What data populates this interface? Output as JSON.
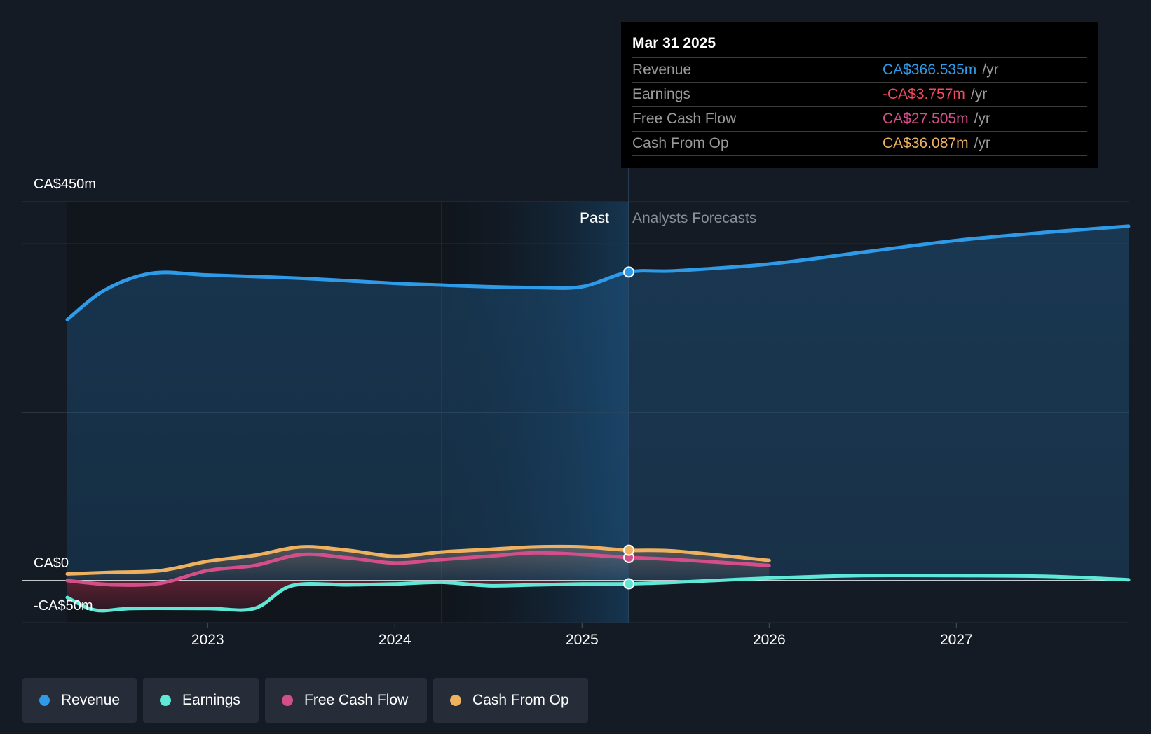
{
  "tooltip": {
    "date": "Mar 31 2025",
    "rows": [
      {
        "label": "Revenue",
        "value": "CA$366.535m",
        "unit": "/yr",
        "color": "#2f9ae8"
      },
      {
        "label": "Earnings",
        "value": "-CA$3.757m",
        "unit": "/yr",
        "color": "#f04a5b"
      },
      {
        "label": "Free Cash Flow",
        "value": "CA$27.505m",
        "unit": "/yr",
        "color": "#d44f8a"
      },
      {
        "label": "Cash From Op",
        "value": "CA$36.087m",
        "unit": "/yr",
        "color": "#eeb15f"
      }
    ]
  },
  "regions": {
    "past": "Past",
    "forecast": "Analysts Forecasts"
  },
  "legend": [
    {
      "label": "Revenue",
      "color": "#2f9ae8"
    },
    {
      "label": "Earnings",
      "color": "#5ee8d5"
    },
    {
      "label": "Free Cash Flow",
      "color": "#d44f8a"
    },
    {
      "label": "Cash From Op",
      "color": "#eeb15f"
    }
  ],
  "chart_data": {
    "type": "line",
    "ylim": [
      -50,
      450
    ],
    "y_tick_labels": [
      "CA$450m",
      "CA$0",
      "-CA$50m"
    ],
    "x_ticks": [
      "2023",
      "2024",
      "2025",
      "2026",
      "2027"
    ],
    "xlim": [
      2022.25,
      2027.92
    ],
    "highlight_x": 2025.25,
    "series": [
      {
        "name": "Revenue",
        "color": "#2f9ae8",
        "points": [
          [
            2022.25,
            310
          ],
          [
            2022.45,
            345
          ],
          [
            2022.7,
            365
          ],
          [
            2023.0,
            363
          ],
          [
            2023.5,
            359
          ],
          [
            2024.0,
            353
          ],
          [
            2024.25,
            351
          ],
          [
            2024.5,
            349
          ],
          [
            2024.75,
            348
          ],
          [
            2025.0,
            349
          ],
          [
            2025.25,
            366.5
          ],
          [
            2025.5,
            368
          ],
          [
            2026.0,
            376
          ],
          [
            2026.5,
            390
          ],
          [
            2027.0,
            404
          ],
          [
            2027.5,
            414
          ],
          [
            2027.92,
            421
          ]
        ]
      },
      {
        "name": "Earnings",
        "color": "#5ee8d5",
        "points": [
          [
            2022.25,
            -20
          ],
          [
            2022.4,
            -35
          ],
          [
            2022.6,
            -33
          ],
          [
            2023.0,
            -33
          ],
          [
            2023.25,
            -33
          ],
          [
            2023.45,
            -6
          ],
          [
            2023.75,
            -5
          ],
          [
            2024.0,
            -4
          ],
          [
            2024.25,
            -2
          ],
          [
            2024.5,
            -6
          ],
          [
            2024.75,
            -5
          ],
          [
            2025.0,
            -4
          ],
          [
            2025.25,
            -3.757
          ],
          [
            2025.5,
            -2
          ],
          [
            2026.0,
            3
          ],
          [
            2026.5,
            6
          ],
          [
            2027.0,
            6
          ],
          [
            2027.5,
            5
          ],
          [
            2027.92,
            1
          ]
        ]
      },
      {
        "name": "Free Cash Flow",
        "color": "#d44f8a",
        "points": [
          [
            2022.25,
            0
          ],
          [
            2022.5,
            -5
          ],
          [
            2022.75,
            -3
          ],
          [
            2023.0,
            12
          ],
          [
            2023.25,
            18
          ],
          [
            2023.5,
            31
          ],
          [
            2023.75,
            27
          ],
          [
            2024.0,
            21
          ],
          [
            2024.25,
            25
          ],
          [
            2024.5,
            29
          ],
          [
            2024.75,
            33
          ],
          [
            2025.0,
            31
          ],
          [
            2025.25,
            27.505
          ],
          [
            2025.5,
            25
          ],
          [
            2026.0,
            18
          ]
        ]
      },
      {
        "name": "Cash From Op",
        "color": "#eeb15f",
        "points": [
          [
            2022.25,
            8
          ],
          [
            2022.5,
            10
          ],
          [
            2022.75,
            12
          ],
          [
            2023.0,
            23
          ],
          [
            2023.25,
            30
          ],
          [
            2023.5,
            40
          ],
          [
            2023.75,
            36
          ],
          [
            2024.0,
            29
          ],
          [
            2024.25,
            34
          ],
          [
            2024.5,
            37
          ],
          [
            2024.75,
            40
          ],
          [
            2025.0,
            40
          ],
          [
            2025.25,
            36.087
          ],
          [
            2025.5,
            35
          ],
          [
            2026.0,
            24
          ]
        ]
      }
    ]
  }
}
